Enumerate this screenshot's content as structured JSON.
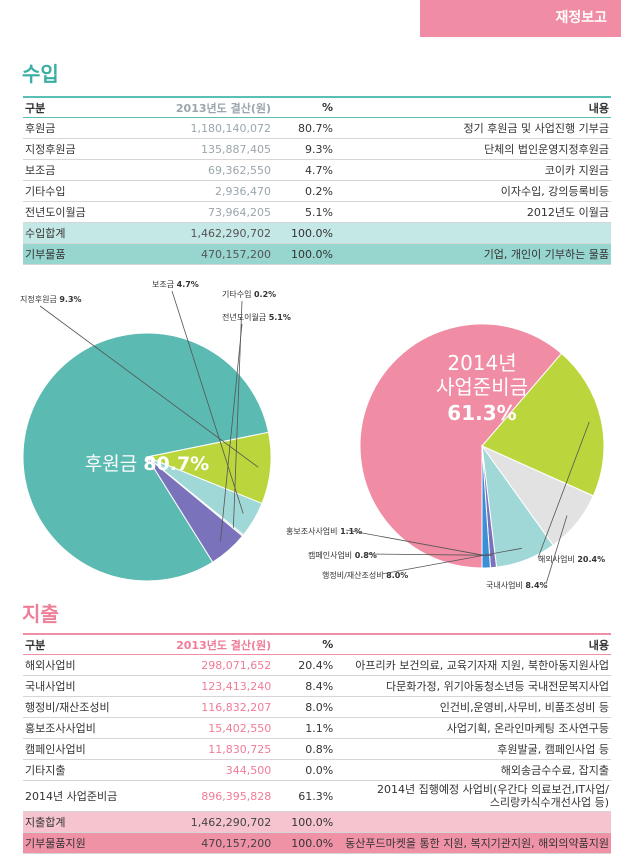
{
  "section_tag": "재정보고",
  "income": {
    "title": "수입",
    "headers": {
      "category": "구분",
      "amount": "2013년도 결산(원)",
      "percent": "%",
      "desc": "내용"
    },
    "rows": [
      {
        "category": "후원금",
        "amount": "1,180,140,072",
        "percent": "80.7%",
        "desc": "정기 후원금 및 사업진행 기부금"
      },
      {
        "category": "지정후원금",
        "amount": "135,887,405",
        "percent": "9.3%",
        "desc": "단체의 법인운영지정후원금"
      },
      {
        "category": "보조금",
        "amount": "69,362,550",
        "percent": "4.7%",
        "desc": "코이카 지원금"
      },
      {
        "category": "기타수입",
        "amount": "2,936,470",
        "percent": "0.2%",
        "desc": "이자수입, 강의등록비등"
      },
      {
        "category": "전년도이월금",
        "amount": "73,964,205",
        "percent": "5.1%",
        "desc": "2012년도 이월금"
      }
    ],
    "total": {
      "category": "수입합계",
      "amount": "1,462,290,702",
      "percent": "100.0%",
      "desc": ""
    },
    "donation": {
      "category": "기부물품",
      "amount": "470,157,200",
      "percent": "100.0%",
      "desc": "기업, 개인이 기부하는 물품"
    }
  },
  "expense": {
    "title": "지출",
    "headers": {
      "category": "구분",
      "amount": "2013년도 결산(원)",
      "percent": "%",
      "desc": "내용"
    },
    "rows": [
      {
        "category": "해외사업비",
        "amount": "298,071,652",
        "percent": "20.4%",
        "desc": "아프리카 보건의료, 교육기자재 지원, 북한아동지원사업"
      },
      {
        "category": "국내사업비",
        "amount": "123,413,240",
        "percent": "8.4%",
        "desc": "다문화가정, 위기아동청소년등 국내전문복지사업"
      },
      {
        "category": "행정비/재산조성비",
        "amount": "116,832,207",
        "percent": "8.0%",
        "desc": "인건비,운영비,사무비, 비품조성비 등"
      },
      {
        "category": "홍보조사사업비",
        "amount": "15,402,550",
        "percent": "1.1%",
        "desc": "사업기획, 온라인마케팅 조사연구등"
      },
      {
        "category": "캠페인사업비",
        "amount": "11,830,725",
        "percent": "0.8%",
        "desc": "후원발굴, 캠페인사업 등"
      },
      {
        "category": "기타지출",
        "amount": "344,500",
        "percent": "0.0%",
        "desc": "해외송금수수료, 잡지출"
      },
      {
        "category": "2014년 사업준비금",
        "amount": "896,395,828",
        "percent": "61.3%",
        "desc": "2014년 집행예정 사업비(우간다 의료보건,IT사업/",
        "desc2": "스리랑카식수개선사업 등)"
      }
    ],
    "total": {
      "category": "지출합계",
      "amount": "1,462,290,702",
      "percent": "100.0%",
      "desc": ""
    },
    "donation": {
      "category": "기부물품지원",
      "amount": "470,157,200",
      "percent": "100.0%",
      "desc": "동산푸드마켓을 통한 지원, 복지기관지원, 해외의약품지원"
    }
  },
  "chart_data": [
    {
      "type": "pie",
      "title": "",
      "categories": [
        "후원금",
        "지정후원금",
        "보조금",
        "기타수입",
        "전년도이월금"
      ],
      "values": [
        80.7,
        9.3,
        4.7,
        0.2,
        5.1
      ],
      "labels": [
        "후원금 80.7%",
        "지정후원금 9.3%",
        "보조금 4.7%",
        "기타수입 0.2%",
        "전년도이월금 5.1%"
      ],
      "label_names": [
        "후원금",
        "지정후원금",
        "보조금",
        "기타수입",
        "전년도이월금"
      ],
      "label_values": [
        "80.7%",
        "9.3%",
        "4.7%",
        "0.2%",
        "5.1%"
      ],
      "colors": [
        "#5bbab1",
        "#bbd63c",
        "#9fd8d7",
        "#c9c9c9",
        "#7a72bb"
      ]
    },
    {
      "type": "pie",
      "title": "",
      "categories": [
        "2014년 사업준비금",
        "해외사업비",
        "국내사업비",
        "행정비/재산조성비",
        "캠페인사업비",
        "홍보조사사업비"
      ],
      "values": [
        61.3,
        20.4,
        8.4,
        8.0,
        0.8,
        1.1
      ],
      "label_names": [
        "2014년 사업준비금",
        "해외사업비",
        "국내사업비",
        "행정비/재산조성비",
        "캠페인사업비",
        "홍보조사사업비"
      ],
      "label_values": [
        "61.3%",
        "20.4%",
        "8.4%",
        "8.0%",
        "0.8%",
        "1.1%"
      ],
      "big_label_line1": "2014년",
      "big_label_line2": "사업준비금",
      "big_label_pct": "61.3%",
      "colors": [
        "#f08ca3",
        "#bbd63c",
        "#e2e2e2",
        "#9fd8d7",
        "#7a72bb",
        "#3a8fd6"
      ]
    }
  ]
}
